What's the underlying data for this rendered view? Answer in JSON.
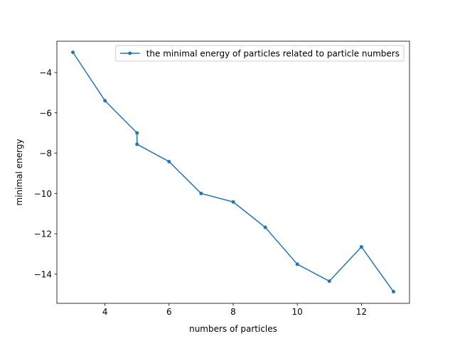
{
  "chart_data": {
    "type": "line",
    "xlabel": "numbers of particles",
    "ylabel": "minimal energy",
    "xlim": [
      2.5,
      13.5
    ],
    "ylim": [
      -15.45,
      -2.45
    ],
    "xticks": [
      4,
      6,
      8,
      10,
      12
    ],
    "yticks": [
      -14,
      -12,
      -10,
      -8,
      -6,
      -4
    ],
    "grid": false,
    "legend_position": "top-right",
    "series": [
      {
        "name": "the minimal energy of particles related to particle numbers",
        "color": "#1f77b4",
        "x": [
          3,
          4,
          5,
          5,
          6,
          7,
          8,
          9,
          10,
          11,
          12,
          13
        ],
        "y": [
          -3.0,
          -5.4,
          -7.0,
          -7.56,
          -8.42,
          -10.0,
          -10.42,
          -11.68,
          -13.51,
          -14.35,
          -12.65,
          -14.87
        ]
      }
    ]
  }
}
